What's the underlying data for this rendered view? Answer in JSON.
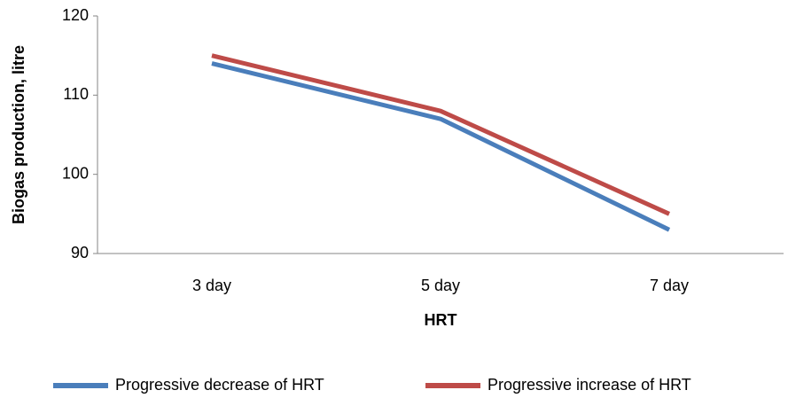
{
  "chart_data": {
    "type": "line",
    "xlabel": "HRT",
    "ylabel": "Biogas production, litre",
    "categories": [
      "3 day",
      "5 day",
      "7 day"
    ],
    "series": [
      {
        "name": "Progressive decrease of HRT",
        "color": "#4a7ebb",
        "values": [
          114,
          107,
          93
        ]
      },
      {
        "name": "Progressive increase of HRT",
        "color": "#be4b48",
        "values": [
          115,
          108,
          95
        ]
      }
    ],
    "ylim": [
      90,
      120
    ],
    "yticks": [
      90,
      100,
      110,
      120
    ],
    "legend": "bottom"
  }
}
